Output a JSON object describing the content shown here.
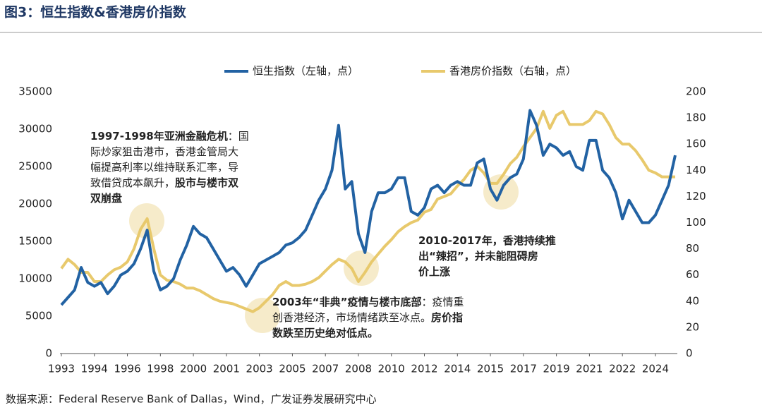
{
  "chart_data": {
    "type": "line",
    "title": "图3：恒生指数&香港房价指数",
    "source": "数据来源：Federal Reserve Bank of Dallas，Wind，广发证券发展研究中心",
    "categories": [
      "1993",
      null,
      null,
      null,
      null,
      "1994",
      null,
      null,
      null,
      null,
      "1996",
      null,
      null,
      null,
      null,
      "1998",
      null,
      null,
      null,
      null,
      "2000",
      null,
      null,
      null,
      null,
      "2001",
      null,
      null,
      null,
      null,
      "2003",
      null,
      null,
      null,
      null,
      "2005",
      null,
      null,
      null,
      null,
      "2007",
      null,
      null,
      null,
      null,
      "2008",
      null,
      null,
      null,
      null,
      "2010",
      null,
      null,
      null,
      null,
      "2012",
      null,
      null,
      null,
      null,
      "2014",
      null,
      null,
      null,
      null,
      "2015",
      null,
      null,
      null,
      null,
      "2017",
      null,
      null,
      null,
      null,
      "2019",
      null,
      null,
      null,
      null,
      "2021",
      null,
      null,
      null,
      null,
      "2022",
      null,
      null,
      null,
      null,
      "2024",
      null,
      null,
      null
    ],
    "series": [
      {
        "name": "恒生指数（左轴，点）",
        "color": "#2262a3",
        "axis": "y",
        "values": [
          6500,
          7500,
          8500,
          11500,
          9500,
          9000,
          9500,
          8000,
          9000,
          10500,
          11000,
          12000,
          14000,
          16500,
          11000,
          8500,
          9000,
          10000,
          12500,
          14500,
          17000,
          16000,
          15500,
          14000,
          12500,
          11000,
          11500,
          10500,
          9000,
          10500,
          12000,
          12500,
          13000,
          13500,
          14500,
          14800,
          15500,
          16500,
          18500,
          20500,
          22000,
          24500,
          30500,
          22000,
          23000,
          16000,
          13500,
          19000,
          21500,
          21500,
          22000,
          23500,
          23500,
          19000,
          18500,
          19500,
          22000,
          22500,
          21500,
          22500,
          23000,
          22500,
          22500,
          25500,
          26000,
          22000,
          20500,
          22500,
          23500,
          24000,
          26000,
          32500,
          30500,
          26500,
          28000,
          27500,
          26500,
          27000,
          25000,
          24500,
          28500,
          28500,
          24500,
          23500,
          21500,
          18000,
          20500,
          19000,
          17500,
          17500,
          18500,
          20500,
          22500,
          26500
        ]
      },
      {
        "name": "香港房价指数（右轴，点）",
        "color": "#e8c96c",
        "axis": "y2",
        "values": [
          65,
          72,
          68,
          62,
          62,
          55,
          55,
          60,
          64,
          66,
          70,
          80,
          95,
          103,
          80,
          60,
          56,
          55,
          53,
          50,
          50,
          48,
          45,
          42,
          40,
          39,
          38,
          36,
          34,
          32,
          35,
          40,
          45,
          52,
          55,
          52,
          52,
          53,
          55,
          58,
          63,
          68,
          72,
          70,
          65,
          55,
          62,
          70,
          76,
          82,
          87,
          93,
          97,
          100,
          102,
          108,
          110,
          118,
          120,
          122,
          128,
          133,
          140,
          143,
          138,
          130,
          130,
          137,
          145,
          150,
          158,
          165,
          172,
          185,
          172,
          182,
          185,
          175,
          175,
          175,
          178,
          185,
          183,
          175,
          165,
          160,
          160,
          155,
          148,
          140,
          138,
          135,
          135,
          135
        ]
      }
    ],
    "ylim": [
      0,
      35000
    ],
    "yticks": [
      0,
      5000,
      10000,
      15000,
      20000,
      25000,
      30000,
      35000
    ],
    "y2lim": [
      0,
      200
    ],
    "y2ticks": [
      0,
      20,
      40,
      60,
      80,
      100,
      120,
      140,
      160,
      180,
      200
    ],
    "legend": "top",
    "annotations": [
      {
        "lines": [
          [
            {
              "text": "1997-1998年亚洲金融危机",
              "bold": true
            },
            {
              "text": "：国"
            }
          ],
          [
            {
              "text": "际炒家狙击港市，香港金管局大"
            }
          ],
          [
            {
              "text": "幅提高利率以维持联系汇率，导"
            }
          ],
          [
            {
              "text": "致借贷成本飙升，"
            },
            {
              "text": "股市与楼市双",
              "bold": true
            }
          ],
          [
            {
              "text": "双崩盘",
              "bold": true
            }
          ]
        ]
      },
      {
        "lines": [
          [
            {
              "text": "2003年“非典”疫情与楼市底部",
              "bold": true
            },
            {
              "text": "：疫情重"
            }
          ],
          [
            {
              "text": "创香港经济，市场情绪跌至冰点。"
            },
            {
              "text": "房价指",
              "bold": true
            }
          ],
          [
            {
              "text": "数跌至历史绝对低点。",
              "bold": true
            }
          ]
        ]
      },
      {
        "lines": [
          [
            {
              "text": "2010-2017年，香港持续推",
              "bold": true
            }
          ],
          [
            {
              "text": "出“辣招”，并未能阻碍房",
              "bold": true
            }
          ],
          [
            {
              "text": "价上涨",
              "bold": true
            }
          ]
        ]
      }
    ]
  }
}
